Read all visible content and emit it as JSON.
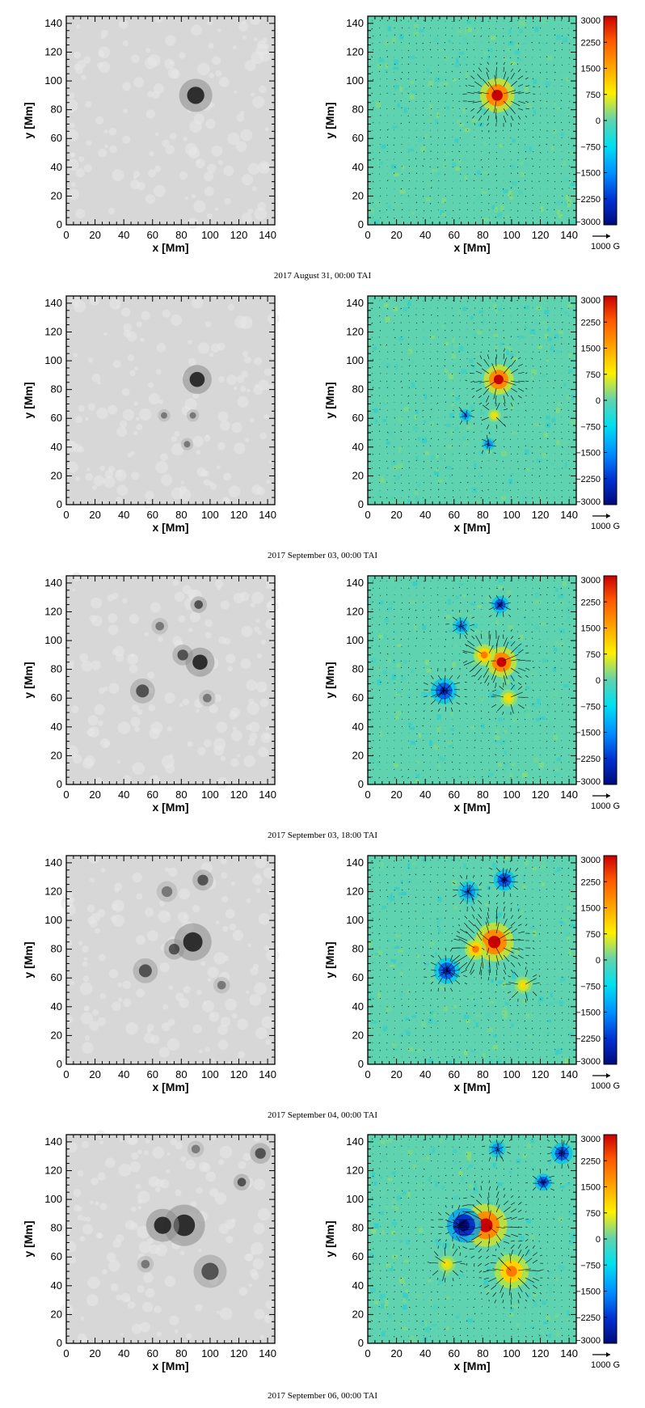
{
  "figure": {
    "units_arrow_label": "1000 G",
    "x_label": "x [Mm]",
    "y_label": "y [Mm]",
    "axis_ticks": [
      "0",
      "20",
      "40",
      "60",
      "80",
      "100",
      "120",
      "140"
    ],
    "colorbar_ticks": [
      "3000",
      "2250",
      "1500",
      "750",
      "0",
      "−750",
      "−1500",
      "−2250",
      "−3000"
    ],
    "colors": {
      "background_field": "#5fd3b0",
      "positive_max": "#c80000",
      "negative_max": "#000a7a",
      "vector": "#000000",
      "continuum": "#cfcfcf"
    }
  },
  "panels": [
    {
      "caption": "2017 August 31, 00:00 TAI"
    },
    {
      "caption": "2017 September 03, 00:00 TAI"
    },
    {
      "caption": "2017 September 03, 18:00 TAI"
    },
    {
      "caption": "2017 September 04, 00:00 TAI"
    },
    {
      "caption": "2017 September 06, 00:00 TAI"
    }
  ],
  "chart_data": [
    {
      "type": "heatmap",
      "title": "",
      "xlabel": "x [Mm]",
      "ylabel": "y [Mm]",
      "xlim": [
        0,
        145
      ],
      "ylim": [
        0,
        145
      ],
      "colorbar": {
        "range": [
          -3000,
          3000
        ],
        "ticks": [
          3000,
          2250,
          1500,
          750,
          0,
          -750,
          -1500,
          -2250,
          -3000
        ],
        "unit": "G"
      },
      "features": [
        {
          "polarity": "positive",
          "x": 90,
          "y": 90,
          "strength": 3000,
          "size": 8
        }
      ],
      "caption": "2017 August 31, 00:00 TAI"
    },
    {
      "type": "heatmap",
      "xlabel": "x [Mm]",
      "ylabel": "y [Mm]",
      "xlim": [
        0,
        145
      ],
      "ylim": [
        0,
        145
      ],
      "features": [
        {
          "polarity": "positive",
          "x": 91,
          "y": 87,
          "strength": 3000,
          "size": 7
        },
        {
          "polarity": "positive",
          "x": 88,
          "y": 62,
          "strength": 1500,
          "size": 3
        },
        {
          "polarity": "negative",
          "x": 68,
          "y": 62,
          "strength": -1500,
          "size": 3
        },
        {
          "polarity": "negative",
          "x": 84,
          "y": 42,
          "strength": -1500,
          "size": 3
        }
      ],
      "caption": "2017 September 03, 00:00 TAI"
    },
    {
      "type": "heatmap",
      "xlabel": "x [Mm]",
      "ylabel": "y [Mm]",
      "xlim": [
        0,
        145
      ],
      "ylim": [
        0,
        145
      ],
      "features": [
        {
          "polarity": "positive",
          "x": 93,
          "y": 85,
          "strength": 3000,
          "size": 7
        },
        {
          "polarity": "positive",
          "x": 81,
          "y": 90,
          "strength": 2250,
          "size": 5
        },
        {
          "polarity": "positive",
          "x": 98,
          "y": 60,
          "strength": 1500,
          "size": 4
        },
        {
          "polarity": "negative",
          "x": 92,
          "y": 125,
          "strength": -2250,
          "size": 4
        },
        {
          "polarity": "negative",
          "x": 53,
          "y": 65,
          "strength": -2250,
          "size": 6
        },
        {
          "polarity": "negative",
          "x": 65,
          "y": 110,
          "strength": -1500,
          "size": 4
        }
      ],
      "caption": "2017 September 03, 18:00 TAI"
    },
    {
      "type": "heatmap",
      "xlabel": "x [Mm]",
      "ylabel": "y [Mm]",
      "xlim": [
        0,
        145
      ],
      "ylim": [
        0,
        145
      ],
      "features": [
        {
          "polarity": "positive",
          "x": 88,
          "y": 85,
          "strength": 3000,
          "size": 9
        },
        {
          "polarity": "positive",
          "x": 75,
          "y": 80,
          "strength": 2250,
          "size": 5
        },
        {
          "polarity": "positive",
          "x": 108,
          "y": 55,
          "strength": 1500,
          "size": 4
        },
        {
          "polarity": "negative",
          "x": 95,
          "y": 128,
          "strength": -2250,
          "size": 5
        },
        {
          "polarity": "negative",
          "x": 55,
          "y": 65,
          "strength": -2250,
          "size": 6
        },
        {
          "polarity": "negative",
          "x": 70,
          "y": 120,
          "strength": -1500,
          "size": 5
        }
      ],
      "caption": "2017 September 04, 00:00 TAI"
    },
    {
      "type": "heatmap",
      "xlabel": "x [Mm]",
      "ylabel": "y [Mm]",
      "xlim": [
        0,
        145
      ],
      "ylim": [
        0,
        145
      ],
      "features": [
        {
          "polarity": "positive",
          "x": 82,
          "y": 82,
          "strength": 3000,
          "size": 10
        },
        {
          "polarity": "positive",
          "x": 100,
          "y": 50,
          "strength": 2250,
          "size": 8
        },
        {
          "polarity": "positive",
          "x": 55,
          "y": 55,
          "strength": 1500,
          "size": 4
        },
        {
          "polarity": "negative",
          "x": 67,
          "y": 82,
          "strength": -3000,
          "size": 8
        },
        {
          "polarity": "negative",
          "x": 135,
          "y": 132,
          "strength": -2250,
          "size": 5
        },
        {
          "polarity": "negative",
          "x": 122,
          "y": 112,
          "strength": -2250,
          "size": 4
        },
        {
          "polarity": "negative",
          "x": 90,
          "y": 135,
          "strength": -1500,
          "size": 4
        }
      ],
      "caption": "2017 September 06, 00:00 TAI"
    }
  ]
}
